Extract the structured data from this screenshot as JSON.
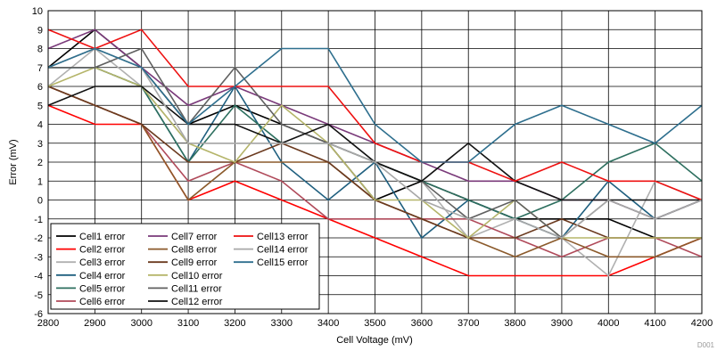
{
  "chart_data": {
    "type": "line",
    "title": "",
    "xlabel": "Cell Voltage (mV)",
    "ylabel": "Error (mV)",
    "figure_id": "D001",
    "xlim": [
      2800,
      4200
    ],
    "ylim": [
      -6,
      10
    ],
    "xticks": [
      2800,
      2900,
      3000,
      3100,
      3200,
      3300,
      3400,
      3500,
      3600,
      3700,
      3800,
      3900,
      4000,
      4100,
      4200
    ],
    "yticks": [
      -6,
      -5,
      -4,
      -3,
      -2,
      -1,
      0,
      1,
      2,
      3,
      4,
      5,
      6,
      7,
      8,
      9,
      10
    ],
    "grid": true,
    "legend_position": "bottom-left",
    "x": [
      2800,
      2900,
      3000,
      3100,
      3200,
      3300,
      3400,
      3500,
      3600,
      3700,
      3800,
      3900,
      4000,
      4100,
      4200
    ],
    "series": [
      {
        "name": "Cell1 error",
        "color": "#000000",
        "values": [
          7,
          9,
          7,
          4,
          5,
          4,
          3,
          0,
          1,
          0,
          -1,
          -1,
          -1,
          -2,
          -2
        ]
      },
      {
        "name": "Cell2 error",
        "color": "#ff0000",
        "values": [
          5,
          4,
          4,
          0,
          1,
          0,
          -1,
          -2,
          -3,
          -4,
          -4,
          -4,
          -4,
          -3,
          -2
        ]
      },
      {
        "name": "Cell3 error",
        "color": "#b0b0b0",
        "values": [
          6,
          8,
          6,
          3,
          3,
          3,
          3,
          2,
          1,
          -2,
          -1,
          -2,
          -4,
          1,
          0
        ]
      },
      {
        "name": "Cell4 error",
        "color": "#1f5f7f",
        "values": [
          7,
          7,
          6,
          2,
          6,
          2,
          0,
          2,
          -2,
          0,
          -1,
          -2,
          1,
          -1,
          0
        ]
      },
      {
        "name": "Cell5 error",
        "color": "#2d6f5f",
        "values": [
          7,
          7,
          6,
          2,
          5,
          3,
          3,
          2,
          1,
          0,
          -1,
          0,
          2,
          3,
          1
        ]
      },
      {
        "name": "Cell6 error",
        "color": "#b04a5a",
        "values": [
          6,
          5,
          4,
          1,
          2,
          1,
          -1,
          -1,
          -1,
          -1,
          -2,
          -3,
          -2,
          -2,
          -3
        ]
      },
      {
        "name": "Cell7 error",
        "color": "#7a3a7a",
        "values": [
          8,
          9,
          7,
          5,
          6,
          5,
          4,
          3,
          2,
          1,
          1,
          0,
          0,
          -1,
          0
        ]
      },
      {
        "name": "Cell8 error",
        "color": "#8b5a2b",
        "values": [
          6,
          5,
          4,
          0,
          2,
          2,
          2,
          0,
          -1,
          -2,
          -3,
          -2,
          -3,
          -3,
          -2
        ]
      },
      {
        "name": "Cell9 error",
        "color": "#6b3a1f",
        "values": [
          6,
          5,
          4,
          2,
          2,
          3,
          2,
          0,
          -1,
          -2,
          -2,
          -1,
          -2,
          -2,
          -2
        ]
      },
      {
        "name": "Cell10 error",
        "color": "#b5b56a",
        "values": [
          6,
          7,
          6,
          3,
          2,
          5,
          3,
          0,
          0,
          -2,
          0,
          -2,
          -2,
          -2,
          -2
        ]
      },
      {
        "name": "Cell11 error",
        "color": "#606060",
        "values": [
          7,
          7,
          8,
          4,
          7,
          4,
          3,
          2,
          1,
          -1,
          0,
          -2,
          0,
          -1,
          0
        ]
      },
      {
        "name": "Cell12 error",
        "color": "#111111",
        "values": [
          5,
          6,
          6,
          4,
          4,
          3,
          4,
          2,
          1,
          3,
          1,
          0,
          0,
          0,
          0
        ]
      },
      {
        "name": "Cell13 error",
        "color": "#ee1111",
        "values": [
          9,
          8,
          9,
          6,
          6,
          6,
          6,
          3,
          2,
          2,
          1,
          2,
          1,
          1,
          0
        ]
      },
      {
        "name": "Cell14 error",
        "color": "#a8a8a8",
        "values": [
          7,
          8,
          7,
          3,
          3,
          3,
          3,
          2,
          0,
          -1,
          -1,
          -2,
          0,
          -1,
          0
        ]
      },
      {
        "name": "Cell15 error",
        "color": "#2e6f8e",
        "values": [
          7,
          8,
          7,
          4,
          6,
          8,
          8,
          4,
          2,
          2,
          4,
          5,
          4,
          3,
          5
        ]
      }
    ]
  }
}
